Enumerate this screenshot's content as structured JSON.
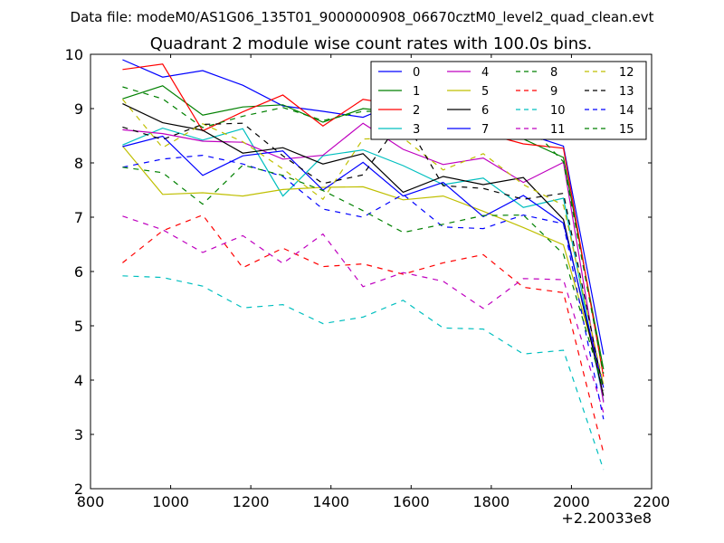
{
  "suptitle": "Data file: modeM0/AS1G06_135T01_9000000908_06670cztM0_level2_quad_clean.evt",
  "chart_data": {
    "type": "line",
    "title": "Quadrant 2 module wise count rates with 100.0s bins.",
    "xlabel": "",
    "ylabel": "",
    "x_offset_label": "+2.20033e8",
    "xlim": [
      800,
      2200
    ],
    "ylim": [
      2,
      10
    ],
    "xticks": [
      800,
      1000,
      1200,
      1400,
      1600,
      1800,
      2000,
      2200
    ],
    "yticks": [
      2,
      3,
      4,
      5,
      6,
      7,
      8,
      9,
      10
    ],
    "grid": false,
    "legend_position": "top-right",
    "legend_columns": 4,
    "x": [
      880,
      980,
      1080,
      1180,
      1280,
      1380,
      1480,
      1580,
      1680,
      1780,
      1880,
      1980,
      2080
    ],
    "series": [
      {
        "name": "0",
        "color": "#0000ff",
        "dash": "solid",
        "values": [
          9.9,
          9.58,
          9.7,
          9.43,
          9.05,
          8.95,
          8.84,
          9.15,
          8.67,
          8.59,
          8.55,
          8.31,
          4.47
        ]
      },
      {
        "name": "1",
        "color": "#008000",
        "dash": "solid",
        "values": [
          9.18,
          9.42,
          8.88,
          9.03,
          9.07,
          8.75,
          9.0,
          8.93,
          8.66,
          8.59,
          8.44,
          8.1,
          4.2
        ]
      },
      {
        "name": "2",
        "color": "#ff0000",
        "dash": "solid",
        "values": [
          9.72,
          9.82,
          8.59,
          8.94,
          9.25,
          8.68,
          9.17,
          9.05,
          8.73,
          8.55,
          8.35,
          8.27,
          4.06
        ]
      },
      {
        "name": "3",
        "color": "#00bfbf",
        "dash": "solid",
        "values": [
          8.33,
          8.64,
          8.42,
          8.63,
          7.39,
          8.13,
          8.24,
          7.95,
          7.6,
          7.72,
          7.18,
          7.35,
          3.61
        ]
      },
      {
        "name": "4",
        "color": "#bf00bf",
        "dash": "solid",
        "values": [
          8.61,
          8.54,
          8.4,
          8.38,
          8.07,
          8.14,
          8.73,
          8.25,
          7.97,
          8.09,
          7.64,
          8.01,
          3.59
        ]
      },
      {
        "name": "5",
        "color": "#bfbf00",
        "dash": "solid",
        "values": [
          8.31,
          7.42,
          7.45,
          7.39,
          7.51,
          7.55,
          7.56,
          7.32,
          7.39,
          7.11,
          6.81,
          6.49,
          3.93
        ]
      },
      {
        "name": "6",
        "color": "#000000",
        "dash": "solid",
        "values": [
          9.09,
          8.74,
          8.6,
          8.18,
          8.28,
          7.98,
          8.17,
          7.46,
          7.75,
          7.6,
          7.73,
          6.96,
          3.71
        ]
      },
      {
        "name": "7",
        "color": "#0000ff",
        "dash": "solid",
        "values": [
          8.3,
          8.49,
          7.77,
          8.13,
          8.22,
          7.5,
          8.01,
          7.39,
          7.64,
          7.01,
          7.4,
          6.89,
          3.86
        ]
      },
      {
        "name": "8",
        "color": "#008000",
        "dash": "dashed",
        "values": [
          9.4,
          9.18,
          8.65,
          8.86,
          9.02,
          8.78,
          8.95,
          8.95,
          8.58,
          8.62,
          8.79,
          8.02,
          4.12
        ]
      },
      {
        "name": "9",
        "color": "#ff0000",
        "dash": "dashed",
        "values": [
          6.16,
          6.75,
          7.04,
          6.07,
          6.43,
          6.09,
          6.14,
          5.95,
          6.16,
          6.31,
          5.71,
          5.61,
          2.66
        ]
      },
      {
        "name": "10",
        "color": "#00bfbf",
        "dash": "dashed",
        "values": [
          5.92,
          5.89,
          5.73,
          5.33,
          5.39,
          5.04,
          5.16,
          5.47,
          4.96,
          4.94,
          4.48,
          4.55,
          2.35
        ]
      },
      {
        "name": "11",
        "color": "#bf00bf",
        "dash": "dashed",
        "values": [
          7.02,
          6.77,
          6.35,
          6.66,
          6.15,
          6.69,
          5.72,
          5.98,
          5.82,
          5.32,
          5.87,
          5.85,
          3.4
        ]
      },
      {
        "name": "12",
        "color": "#bfbf00",
        "dash": "dashed",
        "values": [
          9.17,
          8.28,
          8.72,
          8.39,
          7.89,
          7.33,
          8.44,
          8.46,
          7.87,
          8.17,
          7.6,
          7.22,
          3.92
        ]
      },
      {
        "name": "13",
        "color": "#000000",
        "dash": "dashed",
        "values": [
          8.66,
          8.43,
          8.71,
          8.73,
          8.13,
          7.62,
          7.78,
          8.84,
          7.58,
          7.53,
          7.33,
          7.44,
          3.81
        ]
      },
      {
        "name": "14",
        "color": "#0000ff",
        "dash": "dashed",
        "values": [
          7.92,
          8.07,
          8.14,
          7.98,
          7.75,
          7.15,
          7.0,
          7.42,
          6.82,
          6.79,
          7.04,
          6.88,
          3.28
        ]
      },
      {
        "name": "15",
        "color": "#008000",
        "dash": "dashed",
        "values": [
          7.92,
          7.82,
          7.24,
          7.96,
          7.77,
          7.49,
          7.12,
          6.72,
          6.87,
          7.03,
          7.04,
          6.32,
          3.84
        ]
      }
    ]
  }
}
